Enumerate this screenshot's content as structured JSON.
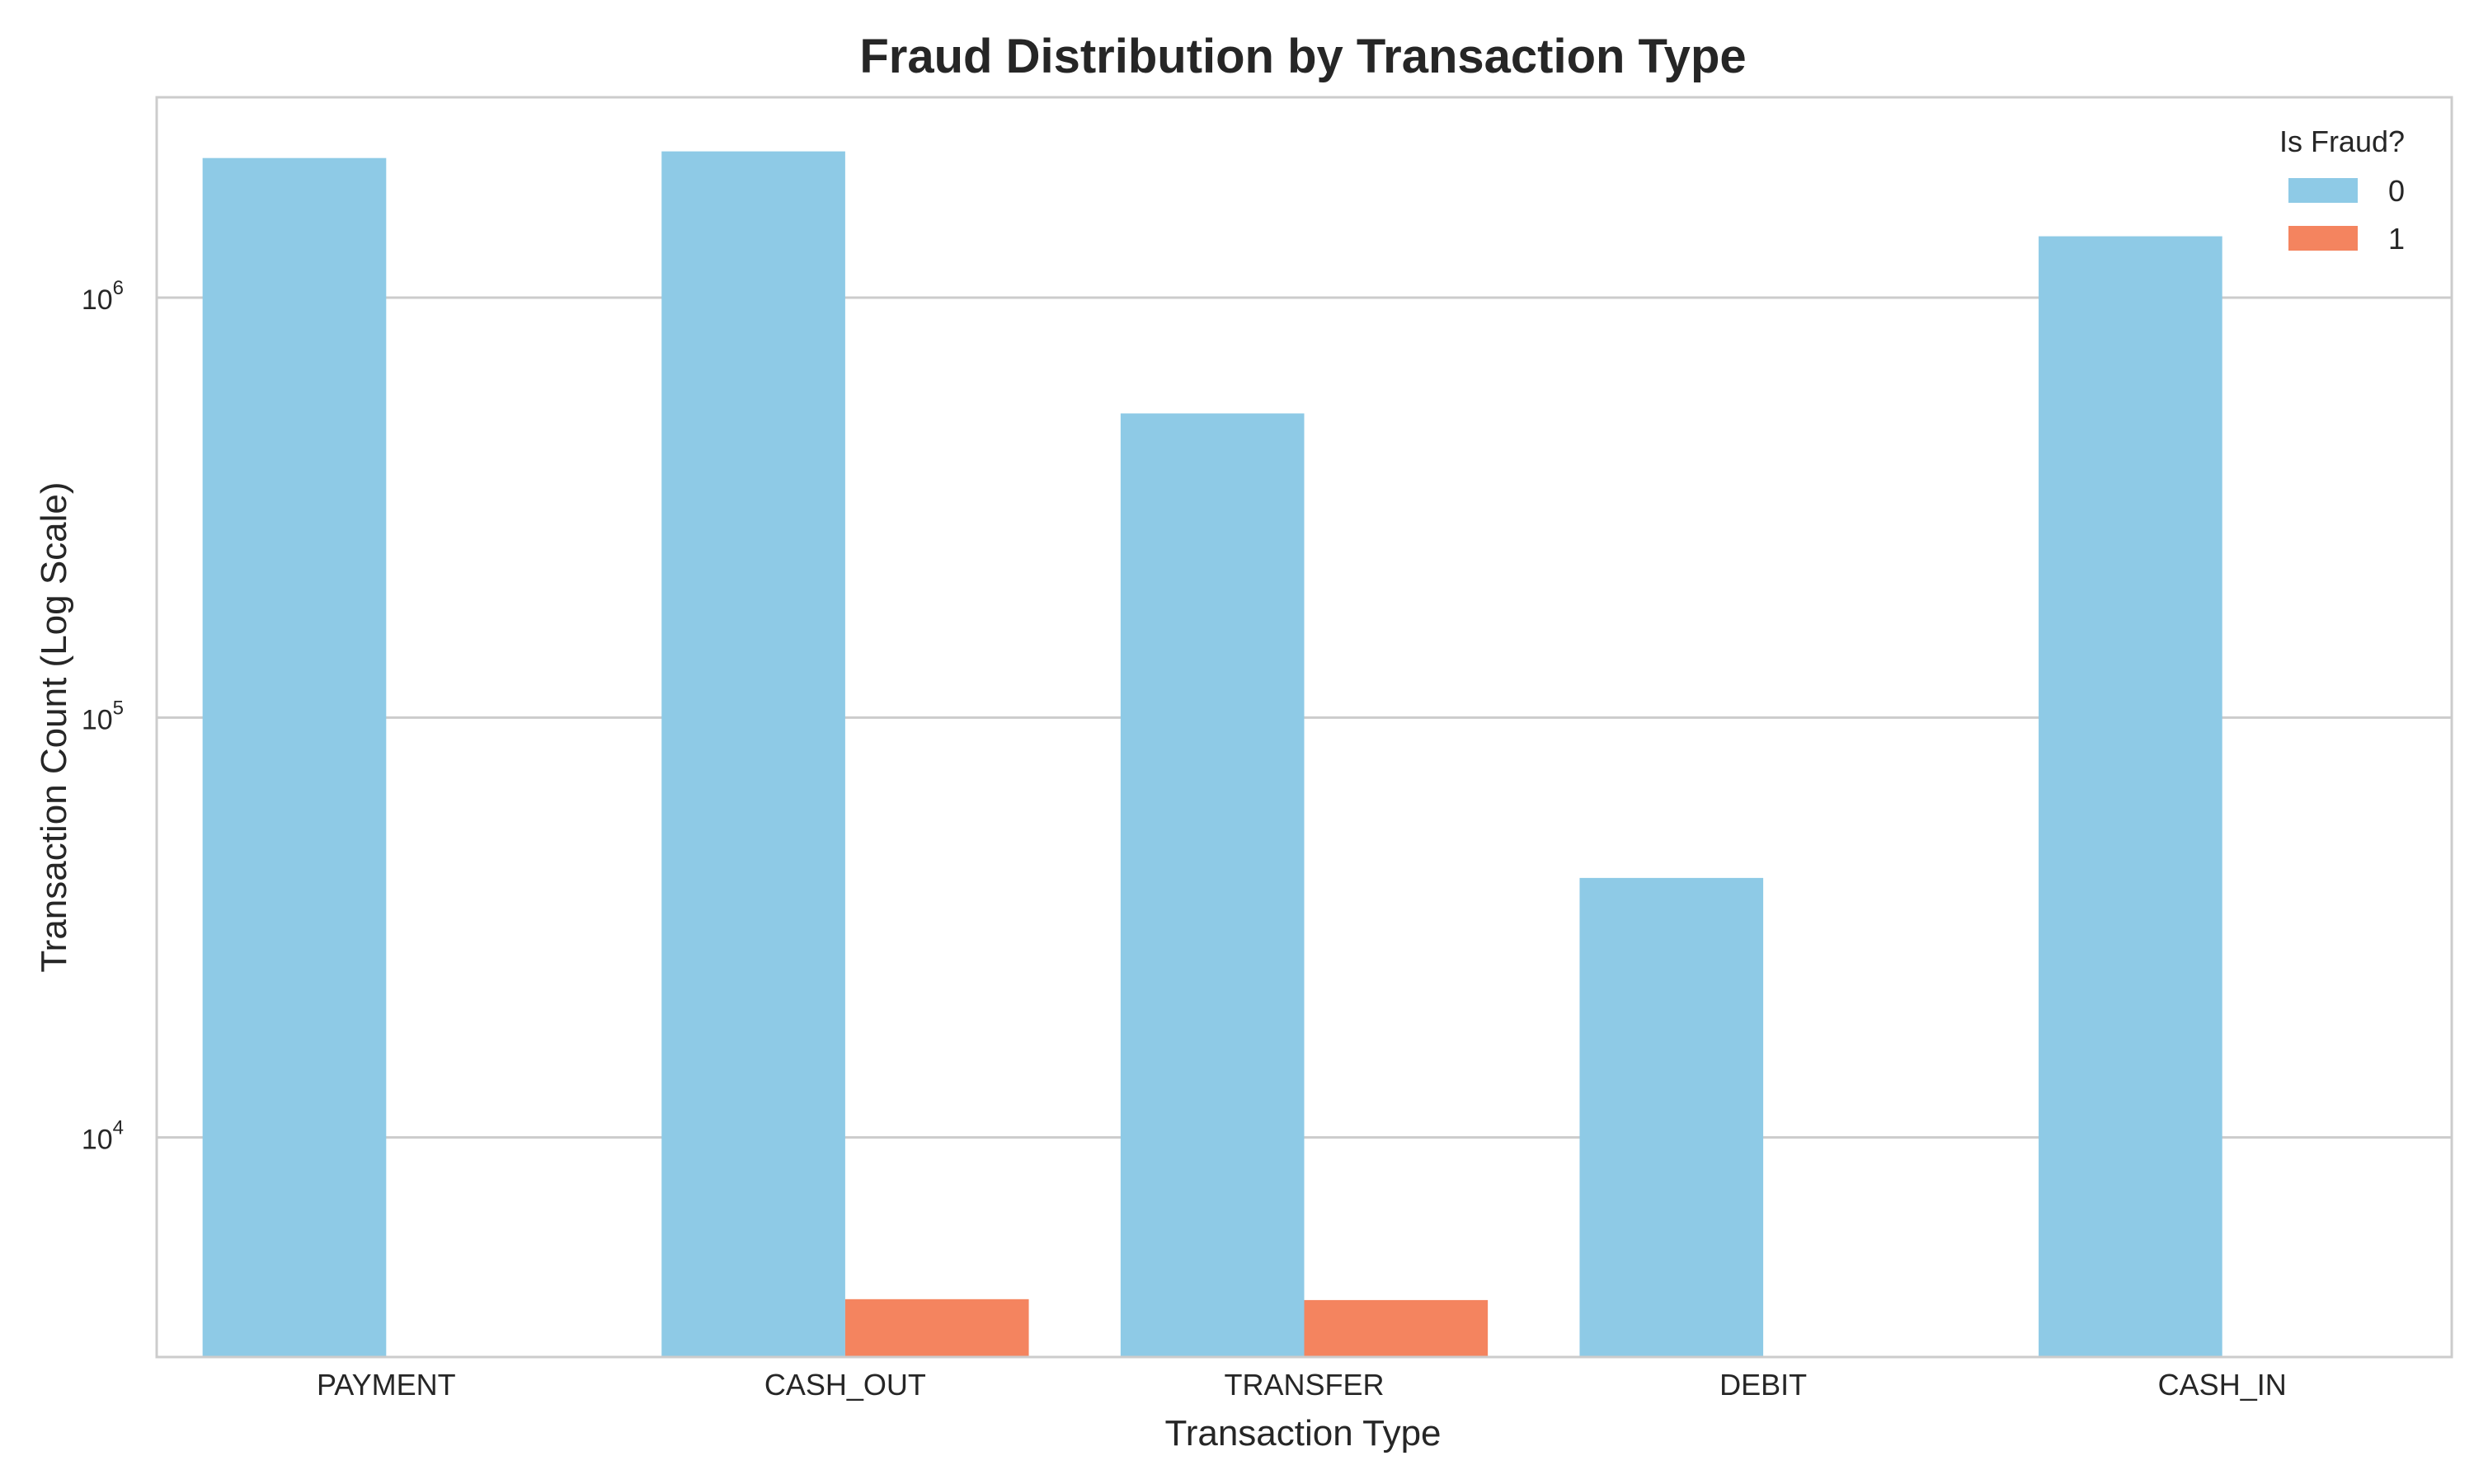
{
  "chart_data": {
    "type": "bar",
    "title": "Fraud Distribution by Transaction Type",
    "xlabel": "Transaction Type",
    "ylabel": "Transaction Count (Log Scale)",
    "y_scale": "log",
    "ylim": [
      3000,
      3000000
    ],
    "y_ticks": [
      {
        "value": 10000,
        "base": "10",
        "exp": "4"
      },
      {
        "value": 100000,
        "base": "10",
        "exp": "5"
      },
      {
        "value": 1000000,
        "base": "10",
        "exp": "6"
      }
    ],
    "grid": "horizontal",
    "categories": [
      "PAYMENT",
      "CASH_OUT",
      "TRANSFER",
      "DEBIT",
      "CASH_IN"
    ],
    "series": [
      {
        "name": "0",
        "color": "#8ecae6",
        "values": [
          2150000,
          2230000,
          530000,
          41500,
          1400000
        ]
      },
      {
        "name": "1",
        "color": "#f4845f",
        "values": [
          null,
          4120,
          4100,
          null,
          null
        ]
      }
    ],
    "legend": {
      "title": "Is Fraud?",
      "placement": "top-right"
    }
  }
}
